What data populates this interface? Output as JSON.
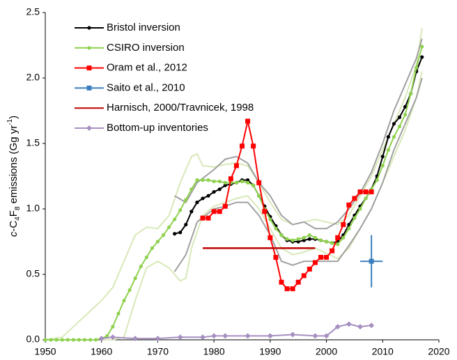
{
  "chart_data": {
    "type": "line",
    "ylabel": [
      "c",
      "-C",
      "4",
      "F",
      "8",
      " emissions (Gg yr",
      "-1",
      ")"
    ],
    "xlim": [
      1950,
      2020
    ],
    "ylim": [
      0,
      2.5
    ],
    "xticks": [
      1950,
      1960,
      1970,
      1980,
      1990,
      2000,
      2010,
      2020
    ],
    "yticks": [
      {
        "value": 0,
        "label": "0.0"
      },
      0.5,
      {
        "value": 1,
        "label": "1.0"
      },
      1.5,
      {
        "value": 2,
        "label": "2.0"
      },
      2.5
    ],
    "legend": "upper left",
    "series": [
      {
        "name": "Bristol inversion",
        "color": "#000000",
        "marker": "circle",
        "x": [
          1973,
          1974,
          1975,
          1976,
          1977,
          1978,
          1979,
          1980,
          1981,
          1982,
          1983,
          1984,
          1985,
          1986,
          1987,
          1988,
          1989,
          1990,
          1991,
          1992,
          1993,
          1994,
          1995,
          1996,
          1997,
          1998,
          1999,
          2000,
          2001,
          2002,
          2003,
          2004,
          2005,
          2006,
          2007,
          2008,
          2009,
          2010,
          2011,
          2012,
          2013,
          2014,
          2015,
          2016,
          2017
        ],
        "values": [
          0.81,
          0.82,
          0.88,
          0.98,
          1.05,
          1.08,
          1.1,
          1.13,
          1.15,
          1.18,
          1.19,
          1.2,
          1.22,
          1.22,
          1.18,
          1.1,
          1.02,
          0.94,
          0.87,
          0.8,
          0.76,
          0.75,
          0.75,
          0.76,
          0.77,
          0.77,
          0.76,
          0.75,
          0.74,
          0.75,
          0.8,
          0.88,
          0.95,
          1.02,
          1.08,
          1.15,
          1.25,
          1.4,
          1.55,
          1.65,
          1.7,
          1.78,
          1.88,
          2.05,
          2.16
        ]
      },
      {
        "name": "CSIRO inversion",
        "color": "#8fd14f",
        "marker": "circle",
        "x": [
          1950,
          1951,
          1952,
          1953,
          1954,
          1955,
          1956,
          1957,
          1958,
          1959,
          1960,
          1961,
          1962,
          1963,
          1964,
          1965,
          1966,
          1967,
          1968,
          1969,
          1970,
          1971,
          1972,
          1973,
          1974,
          1975,
          1976,
          1977,
          1978,
          1979,
          1980,
          1981,
          1982,
          1983,
          1984,
          1985,
          1986,
          1987,
          1988,
          1989,
          1990,
          1991,
          1992,
          1993,
          1994,
          1995,
          1996,
          1997,
          1998,
          1999,
          2000,
          2001,
          2002,
          2003,
          2004,
          2005,
          2006,
          2007,
          2008,
          2009,
          2010,
          2011,
          2012,
          2013,
          2014,
          2015,
          2016,
          2017
        ],
        "values": [
          0,
          0,
          0,
          0,
          0,
          0,
          0,
          0,
          0,
          0,
          0.01,
          0.03,
          0.1,
          0.2,
          0.3,
          0.38,
          0.47,
          0.56,
          0.63,
          0.7,
          0.75,
          0.8,
          0.86,
          0.92,
          0.99,
          1.07,
          1.15,
          1.22,
          1.22,
          1.22,
          1.21,
          1.21,
          1.2,
          1.2,
          1.2,
          1.21,
          1.2,
          1.18,
          1.1,
          1.0,
          0.92,
          0.85,
          0.8,
          0.77,
          0.76,
          0.77,
          0.78,
          0.8,
          0.78,
          0.76,
          0.75,
          0.74,
          0.73,
          0.78,
          0.85,
          0.93,
          1.0,
          1.08,
          1.15,
          1.22,
          1.33,
          1.45,
          1.55,
          1.63,
          1.72,
          1.88,
          2.08,
          2.24
        ]
      },
      {
        "name": "Oram et al., 2012",
        "color": "#ff0000",
        "marker": "square",
        "x": [
          1978,
          1979,
          1980,
          1981,
          1982,
          1983,
          1984,
          1985,
          1986,
          1987,
          1988,
          1989,
          1990,
          1991,
          1992,
          1993,
          1994,
          1995,
          1996,
          1997,
          1998,
          1999,
          2000,
          2001,
          2002,
          2003,
          2004,
          2005,
          2006,
          2007,
          2008
        ],
        "values": [
          0.93,
          0.93,
          0.98,
          0.98,
          1.02,
          1.23,
          1.33,
          1.48,
          1.67,
          1.48,
          1.2,
          0.98,
          0.78,
          0.63,
          0.44,
          0.39,
          0.39,
          0.44,
          0.49,
          0.54,
          0.59,
          0.63,
          0.63,
          0.68,
          0.78,
          0.88,
          1.03,
          1.08,
          1.13,
          1.13,
          1.13
        ]
      },
      {
        "name": "Saito et al., 2010",
        "color": "#3a7fbd",
        "marker": "square",
        "x": [
          2008
        ],
        "values": [
          0.6
        ],
        "xerr": [
          2
        ],
        "yerr": [
          0.2
        ]
      },
      {
        "name": "Harnisch, 2000/Travnicek, 1998",
        "color": "#c00000",
        "marker": "none",
        "x": [
          1978,
          1998
        ],
        "values": [
          0.7,
          0.7
        ]
      },
      {
        "name": "Bottom-up inventories",
        "color": "#a68fc0",
        "marker": "diamond",
        "x": [
          1960,
          1962,
          1966,
          1970,
          1974,
          1978,
          1980,
          1982,
          1986,
          1990,
          1994,
          1998,
          2000,
          2002,
          2004,
          2006,
          2008
        ],
        "values": [
          0.01,
          0.02,
          0.01,
          0.01,
          0.02,
          0.02,
          0.03,
          0.03,
          0.03,
          0.03,
          0.04,
          0.03,
          0.03,
          0.1,
          0.12,
          0.1,
          0.11
        ]
      }
    ],
    "bands": [
      {
        "color": "#d8e8b8",
        "x": [
          1950,
          1953,
          1955,
          1958,
          1960,
          1962,
          1964,
          1966,
          1968,
          1970,
          1972,
          1974,
          1976,
          1977,
          1978,
          1980,
          1982,
          1984,
          1986,
          1988,
          1990,
          1992,
          1994,
          1996,
          1998,
          2000,
          2002,
          2004,
          2006,
          2008,
          2010,
          2012,
          2014,
          2016,
          2017
        ],
        "values": [
          0,
          0.02,
          0.1,
          0.22,
          0.3,
          0.4,
          0.6,
          0.8,
          0.86,
          0.85,
          0.95,
          1.2,
          1.4,
          1.42,
          1.33,
          1.32,
          1.34,
          1.35,
          1.33,
          1.2,
          1.05,
          0.92,
          0.88,
          0.9,
          0.92,
          0.9,
          0.88,
          0.95,
          1.1,
          1.25,
          1.45,
          1.65,
          1.85,
          2.1,
          2.38
        ]
      },
      {
        "color": "#d8e8b8",
        "x": [
          1960,
          1962,
          1964,
          1966,
          1968,
          1970,
          1972,
          1974,
          1975,
          1976,
          1978,
          1980,
          1982,
          1984,
          1986,
          1988,
          1990,
          1992,
          1994,
          1996,
          1998,
          2000,
          2002,
          2004,
          2006,
          2008,
          2010,
          2012,
          2014,
          2016,
          2017
        ],
        "values": [
          0,
          0,
          0.02,
          0.3,
          0.55,
          0.6,
          0.55,
          0.45,
          0.47,
          0.7,
          0.95,
          1.02,
          1.05,
          1.08,
          1.1,
          1.0,
          0.85,
          0.7,
          0.65,
          0.67,
          0.7,
          0.66,
          0.62,
          0.7,
          0.85,
          1.0,
          1.2,
          1.4,
          1.6,
          1.85,
          2.05
        ]
      },
      {
        "color": "#a0a0a0",
        "x": [
          1973,
          1975,
          1977,
          1980,
          1982,
          1984,
          1986,
          1988,
          1990,
          1992,
          1994,
          1996,
          1998,
          2000,
          2002,
          2004,
          2006,
          2008,
          2010,
          2012,
          2014,
          2016,
          2017
        ],
        "values": [
          1.1,
          1.05,
          1.2,
          1.3,
          1.38,
          1.4,
          1.35,
          1.2,
          1.1,
          0.95,
          0.88,
          0.9,
          0.85,
          0.85,
          0.9,
          1.0,
          1.12,
          1.28,
          1.5,
          1.75,
          1.95,
          2.15,
          2.3
        ]
      },
      {
        "color": "#a0a0a0",
        "x": [
          1973,
          1975,
          1977,
          1980,
          1982,
          1984,
          1986,
          1988,
          1990,
          1992,
          1994,
          1996,
          1998,
          2000,
          2002,
          2004,
          2006,
          2008,
          2010,
          2012,
          2014,
          2016,
          2017
        ],
        "values": [
          0.52,
          0.65,
          0.9,
          1.0,
          1.02,
          1.05,
          1.05,
          0.95,
          0.8,
          0.6,
          0.57,
          0.6,
          0.6,
          0.6,
          0.6,
          0.72,
          0.85,
          1.0,
          1.2,
          1.45,
          1.65,
          1.85,
          2.0
        ]
      }
    ]
  }
}
